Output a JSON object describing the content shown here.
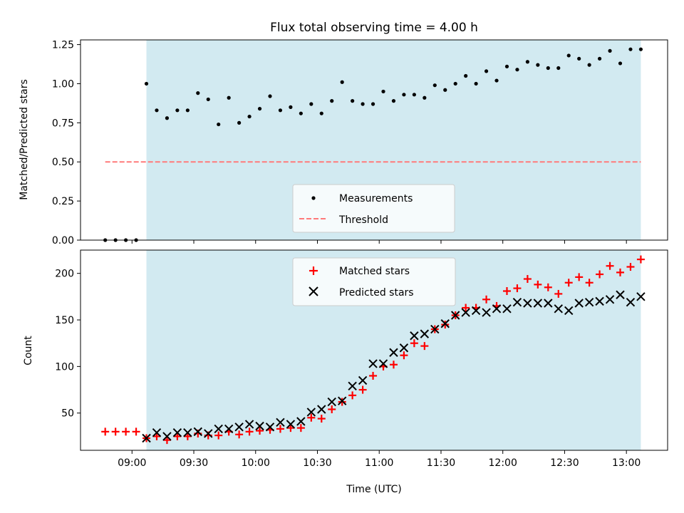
{
  "chart_data": [
    {
      "type": "scatter",
      "title": "Flux total observing time = 4.00 h",
      "xlabel": "",
      "ylabel": "Matched/Predicted stars",
      "ylim": [
        0,
        1.28
      ],
      "yticks": [
        "0.00",
        "0.25",
        "0.50",
        "0.75",
        "1.00",
        "1.25"
      ],
      "grid": false,
      "legend_position": "bottom-center",
      "threshold": 0.5,
      "shaded_region": [
        "09:07",
        "13:07"
      ],
      "series": [
        {
          "name": "Measurements",
          "marker": "dot",
          "color": "#000000",
          "x": [
            "08:47",
            "08:52",
            "08:57",
            "09:02",
            "09:07",
            "09:12",
            "09:17",
            "09:22",
            "09:27",
            "09:32",
            "09:37",
            "09:42",
            "09:47",
            "09:52",
            "09:57",
            "10:02",
            "10:07",
            "10:12",
            "10:17",
            "10:22",
            "10:27",
            "10:32",
            "10:37",
            "10:42",
            "10:47",
            "10:52",
            "10:57",
            "11:02",
            "11:07",
            "11:12",
            "11:17",
            "11:22",
            "11:27",
            "11:32",
            "11:37",
            "11:42",
            "11:47",
            "11:52",
            "11:57",
            "12:02",
            "12:07",
            "12:12",
            "12:17",
            "12:22",
            "12:27",
            "12:32",
            "12:37",
            "12:42",
            "12:47",
            "12:52",
            "12:57",
            "13:02",
            "13:07"
          ],
          "y": [
            0.0,
            0.0,
            0.0,
            0.0,
            1.0,
            0.83,
            0.78,
            0.83,
            0.83,
            0.94,
            0.9,
            0.74,
            0.91,
            0.75,
            0.79,
            0.84,
            0.92,
            0.83,
            0.85,
            0.81,
            0.87,
            0.81,
            0.89,
            1.01,
            0.89,
            0.87,
            0.87,
            0.95,
            0.89,
            0.93,
            0.93,
            0.91,
            0.99,
            0.96,
            1.0,
            1.05,
            1.0,
            1.08,
            1.02,
            1.11,
            1.09,
            1.14,
            1.12,
            1.1,
            1.1,
            1.18,
            1.16,
            1.12,
            1.16,
            1.21,
            1.13,
            1.22,
            1.22
          ]
        },
        {
          "name": "Threshold",
          "style": "dashed",
          "color": "#ff7a7a",
          "x": [
            "08:47",
            "13:07"
          ],
          "y": [
            0.5,
            0.5
          ]
        }
      ]
    },
    {
      "type": "scatter",
      "title": "",
      "xlabel": "Time (UTC)",
      "ylabel": "Count",
      "ylim": [
        10,
        225
      ],
      "yticks": [
        "50",
        "100",
        "150",
        "200"
      ],
      "xticks": [
        "09:00",
        "09:30",
        "10:00",
        "10:30",
        "11:00",
        "11:30",
        "12:00",
        "12:30",
        "13:00"
      ],
      "grid": false,
      "legend_position": "top-center",
      "shaded_region": [
        "09:07",
        "13:07"
      ],
      "series": [
        {
          "name": "Matched stars",
          "marker": "plus",
          "color": "#ff0000",
          "x": [
            "08:47",
            "08:52",
            "08:57",
            "09:02",
            "09:07",
            "09:12",
            "09:17",
            "09:22",
            "09:27",
            "09:32",
            "09:37",
            "09:42",
            "09:47",
            "09:52",
            "09:57",
            "10:02",
            "10:07",
            "10:12",
            "10:17",
            "10:22",
            "10:27",
            "10:32",
            "10:37",
            "10:42",
            "10:47",
            "10:52",
            "10:57",
            "11:02",
            "11:07",
            "11:12",
            "11:17",
            "11:22",
            "11:27",
            "11:32",
            "11:37",
            "11:42",
            "11:47",
            "11:52",
            "11:57",
            "12:02",
            "12:07",
            "12:12",
            "12:17",
            "12:22",
            "12:27",
            "12:32",
            "12:37",
            "12:42",
            "12:47",
            "12:52",
            "12:57",
            "13:02",
            "13:07"
          ],
          "y": [
            30,
            30,
            30,
            30,
            23,
            25,
            21,
            25,
            25,
            28,
            26,
            26,
            30,
            27,
            30,
            31,
            32,
            33,
            34,
            34,
            45,
            44,
            54,
            62,
            69,
            75,
            90,
            100,
            102,
            112,
            125,
            122,
            140,
            145,
            155,
            163,
            163,
            172,
            165,
            181,
            184,
            194,
            188,
            185,
            178,
            190,
            196,
            190,
            199,
            208,
            201,
            207,
            215
          ]
        },
        {
          "name": "Predicted stars",
          "marker": "x",
          "color": "#000000",
          "x": [
            "09:07",
            "09:12",
            "09:17",
            "09:22",
            "09:27",
            "09:32",
            "09:37",
            "09:42",
            "09:47",
            "09:52",
            "09:57",
            "10:02",
            "10:07",
            "10:12",
            "10:17",
            "10:22",
            "10:27",
            "10:32",
            "10:37",
            "10:42",
            "10:47",
            "10:52",
            "10:57",
            "11:02",
            "11:07",
            "11:12",
            "11:17",
            "11:22",
            "11:27",
            "11:32",
            "11:37",
            "11:42",
            "11:47",
            "11:52",
            "11:57",
            "12:02",
            "12:07",
            "12:12",
            "12:17",
            "12:22",
            "12:27",
            "12:32",
            "12:37",
            "12:42",
            "12:47",
            "12:52",
            "12:57",
            "13:02",
            "13:07"
          ],
          "y": [
            23,
            29,
            25,
            29,
            29,
            30,
            28,
            33,
            33,
            35,
            38,
            36,
            35,
            40,
            38,
            41,
            51,
            54,
            62,
            63,
            79,
            85,
            103,
            103,
            115,
            120,
            133,
            135,
            140,
            146,
            155,
            158,
            160,
            158,
            162,
            162,
            169,
            168,
            168,
            168,
            162,
            160,
            168,
            169,
            170,
            172,
            177,
            169,
            175
          ]
        }
      ]
    }
  ]
}
